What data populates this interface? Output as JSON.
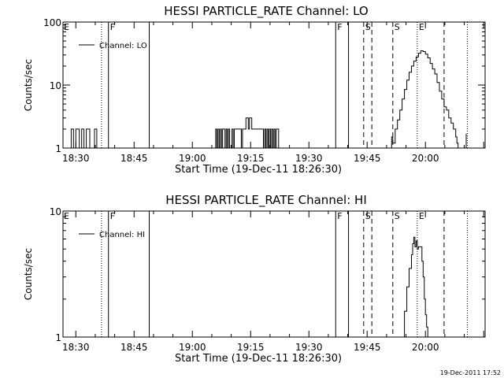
{
  "chart_data": [
    {
      "type": "line",
      "title": "HESSI PARTICLE_RATE Channel: LO",
      "xlabel": "Start Time (19-Dec-11 18:26:30)",
      "ylabel": "Counts/sec",
      "yscale": "log",
      "ylim": [
        1,
        100
      ],
      "yticks": [
        {
          "v": 1,
          "label": "1"
        },
        {
          "v": 10,
          "label": "10"
        },
        {
          "v": 100,
          "label": "100"
        }
      ],
      "xlim": [
        18.445,
        20.256
      ],
      "xticks": [
        {
          "v": 18.5,
          "label": "18:30"
        },
        {
          "v": 18.75,
          "label": "18:45"
        },
        {
          "v": 19.0,
          "label": "19:00"
        },
        {
          "v": 19.25,
          "label": "19:15"
        },
        {
          "v": 19.5,
          "label": "19:30"
        },
        {
          "v": 19.75,
          "label": "19:45"
        },
        {
          "v": 20.0,
          "label": "20:00"
        }
      ],
      "legend": {
        "label": "Channel: LO",
        "position": "top-left"
      },
      "series": [
        {
          "segments": [
            {
              "x": [
                18.46,
                18.475,
                18.48,
                18.485,
                18.49,
                18.5,
                18.51,
                18.515,
                18.52,
                18.525,
                18.53,
                18.535,
                18.54,
                18.545,
                18.55,
                18.555,
                18.56,
                18.565,
                18.57,
                18.575,
                18.58,
                18.585,
                18.59,
                18.595
              ],
              "y": [
                1,
                1,
                2,
                2,
                1,
                2,
                2,
                1,
                1,
                2,
                2,
                1,
                1,
                2,
                2,
                2,
                1,
                1,
                1,
                1,
                2,
                2,
                1,
                1
              ]
            },
            {
              "x": [
                19.095,
                19.1,
                19.105,
                19.11,
                19.115,
                19.12,
                19.125,
                19.13,
                19.135,
                19.14,
                19.145,
                19.15,
                19.155,
                19.16,
                19.165,
                19.17,
                19.175,
                19.18,
                19.19,
                19.2,
                19.21,
                19.215,
                19.22,
                19.225,
                19.23,
                19.235,
                19.24,
                19.245,
                19.25,
                19.255,
                19.26,
                19.265,
                19.27,
                19.28,
                19.29,
                19.3,
                19.305,
                19.31,
                19.315,
                19.32,
                19.325,
                19.33,
                19.335,
                19.34,
                19.345,
                19.35,
                19.355,
                19.36,
                19.365,
                19.37
              ],
              "y": [
                1,
                2,
                1,
                2,
                1,
                2,
                1,
                2,
                2,
                1,
                2,
                1,
                2,
                1,
                1,
                2,
                1,
                2,
                2,
                2,
                1,
                2,
                2,
                2,
                3,
                3,
                2,
                3,
                3,
                2,
                2,
                2,
                2,
                2,
                2,
                2,
                1,
                2,
                1,
                2,
                1,
                2,
                1,
                2,
                1,
                2,
                1,
                2,
                2,
                1
              ]
            },
            {
              "x": [
                19.845,
                19.855,
                19.86,
                19.87,
                19.88,
                19.89,
                19.9,
                19.91,
                19.92,
                19.93,
                19.94,
                19.95,
                19.96,
                19.97,
                19.98,
                19.99,
                20.0,
                20.01,
                20.02,
                20.03,
                20.04,
                20.05,
                20.06,
                20.07,
                20.08,
                20.09,
                20.1,
                20.11,
                20.12,
                20.13,
                20.135,
                20.14,
                20.145
              ],
              "y": [
                1,
                1.5,
                1.2,
                2,
                2.8,
                4,
                6,
                8.5,
                12,
                16,
                20,
                24,
                28,
                32,
                35,
                34,
                31,
                27,
                22,
                18,
                15,
                11,
                8,
                6,
                4.5,
                4,
                3,
                2.5,
                2,
                1.5,
                1.2,
                1,
                1
              ]
            },
            {
              "x": [
                20.17,
                20.175
              ],
              "y": [
                1,
                1.7
              ]
            }
          ]
        }
      ],
      "vlines": [
        {
          "x": 18.61,
          "label": "",
          "style": "dotted"
        },
        {
          "x": 18.64,
          "label": "F",
          "style": "solid"
        },
        {
          "x": 18.815,
          "label": "",
          "style": "solid"
        },
        {
          "x": 19.615,
          "label": "F",
          "style": "solid"
        },
        {
          "x": 19.67,
          "label": "",
          "style": "solid"
        },
        {
          "x": 19.735,
          "label": "S",
          "style": "dashed"
        },
        {
          "x": 19.77,
          "label": "",
          "style": "dashed"
        },
        {
          "x": 19.86,
          "label": "S",
          "style": "dashed"
        },
        {
          "x": 19.965,
          "label": "E",
          "style": "dotted"
        },
        {
          "x": 20.08,
          "label": "",
          "style": "dashed"
        },
        {
          "x": 20.18,
          "label": "",
          "style": "dotted"
        }
      ],
      "corner_label": "E"
    },
    {
      "type": "line",
      "title": "HESSI PARTICLE_RATE Channel: HI",
      "xlabel": "Start Time (19-Dec-11 18:26:30)",
      "ylabel": "Counts/sec",
      "yscale": "log",
      "ylim": [
        1,
        10
      ],
      "yticks": [
        {
          "v": 1,
          "label": "1"
        },
        {
          "v": 10,
          "label": "10"
        }
      ],
      "xlim": [
        18.445,
        20.256
      ],
      "xticks": [
        {
          "v": 18.5,
          "label": "18:30"
        },
        {
          "v": 18.75,
          "label": "18:45"
        },
        {
          "v": 19.0,
          "label": "19:00"
        },
        {
          "v": 19.25,
          "label": "19:15"
        },
        {
          "v": 19.5,
          "label": "19:30"
        },
        {
          "v": 19.75,
          "label": "19:45"
        },
        {
          "v": 20.0,
          "label": "20:00"
        }
      ],
      "legend": {
        "label": "Channel: HI",
        "position": "top-left"
      },
      "series": [
        {
          "segments": [
            {
              "x": [
                19.9,
                19.91,
                19.92,
                19.93,
                19.94,
                19.945,
                19.95,
                19.955,
                19.96,
                19.965,
                19.97,
                19.975,
                19.98,
                19.985,
                19.99,
                19.995,
                20.0,
                20.005,
                20.01
              ],
              "y": [
                1,
                1.6,
                2.5,
                3.5,
                4.5,
                5.5,
                6.2,
                5.2,
                5.8,
                5,
                5.2,
                5.2,
                5.2,
                4,
                3,
                2,
                1.5,
                1.2,
                1
              ]
            }
          ]
        }
      ],
      "vlines": [
        {
          "x": 18.61,
          "label": "",
          "style": "dotted"
        },
        {
          "x": 18.64,
          "label": "F",
          "style": "solid"
        },
        {
          "x": 18.815,
          "label": "",
          "style": "solid"
        },
        {
          "x": 19.615,
          "label": "F",
          "style": "solid"
        },
        {
          "x": 19.67,
          "label": "",
          "style": "solid"
        },
        {
          "x": 19.735,
          "label": "S",
          "style": "dashed"
        },
        {
          "x": 19.77,
          "label": "",
          "style": "dashed"
        },
        {
          "x": 19.86,
          "label": "S",
          "style": "dashed"
        },
        {
          "x": 19.965,
          "label": "E",
          "style": "dotted"
        },
        {
          "x": 20.08,
          "label": "",
          "style": "dashed"
        },
        {
          "x": 20.18,
          "label": "",
          "style": "dotted"
        }
      ],
      "corner_label": "E"
    }
  ],
  "footer": {
    "timestamp": "19-Dec-2011 17:52"
  }
}
